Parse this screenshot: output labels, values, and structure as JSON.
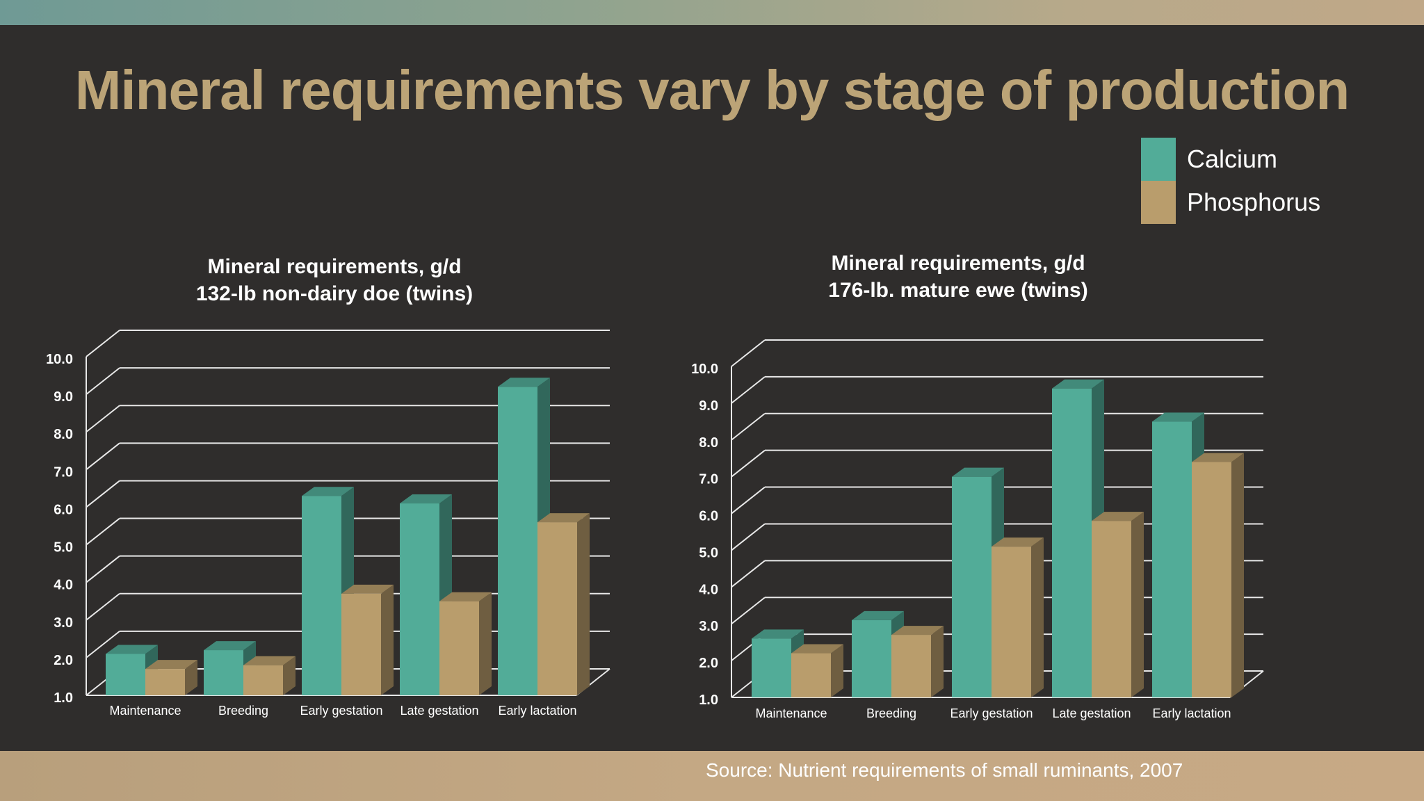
{
  "slide": {
    "title": "Mineral requirements vary by stage of production",
    "source": "Source:  Nutrient requirements of small ruminants, 2007"
  },
  "legend": [
    {
      "label": "Calcium",
      "color": "#52ac98"
    },
    {
      "label": "Phosphorus",
      "color": "#b99d6c"
    }
  ],
  "chart_data": [
    {
      "type": "bar",
      "title": "Mineral requirements, g/d",
      "subtitle": "132-lb non-dairy doe (twins)",
      "categories": [
        "Maintenance",
        "Breeding",
        "Early gestation",
        "Late gestation",
        "Early lactation"
      ],
      "series": [
        {
          "name": "Calcium",
          "values": [
            2.1,
            2.2,
            6.3,
            6.1,
            9.2
          ]
        },
        {
          "name": "Phosphorus",
          "values": [
            1.7,
            1.8,
            3.7,
            3.5,
            5.6
          ]
        }
      ],
      "ylim": [
        1.0,
        10.0
      ],
      "yticks": [
        "1.0",
        "2.0",
        "3.0",
        "4.0",
        "5.0",
        "6.0",
        "7.0",
        "8.0",
        "9.0",
        "10.0"
      ],
      "grid": true,
      "legend": "top-right"
    },
    {
      "type": "bar",
      "title": "Mineral requirements, g/d",
      "subtitle": "176-lb. mature ewe (twins)",
      "categories": [
        "Maintenance",
        "Breeding",
        "Early gestation",
        "Late gestation",
        "Early lactation"
      ],
      "series": [
        {
          "name": "Calcium",
          "values": [
            2.6,
            3.1,
            7.0,
            9.4,
            8.5
          ]
        },
        {
          "name": "Phosphorus",
          "values": [
            2.2,
            2.7,
            5.1,
            5.8,
            7.4
          ]
        }
      ],
      "ylim": [
        1.0,
        10.0
      ],
      "yticks": [
        "1.0",
        "2.0",
        "3.0",
        "4.0",
        "5.0",
        "6.0",
        "7.0",
        "8.0",
        "9.0",
        "10.0"
      ],
      "grid": true,
      "legend": "top-right"
    }
  ]
}
